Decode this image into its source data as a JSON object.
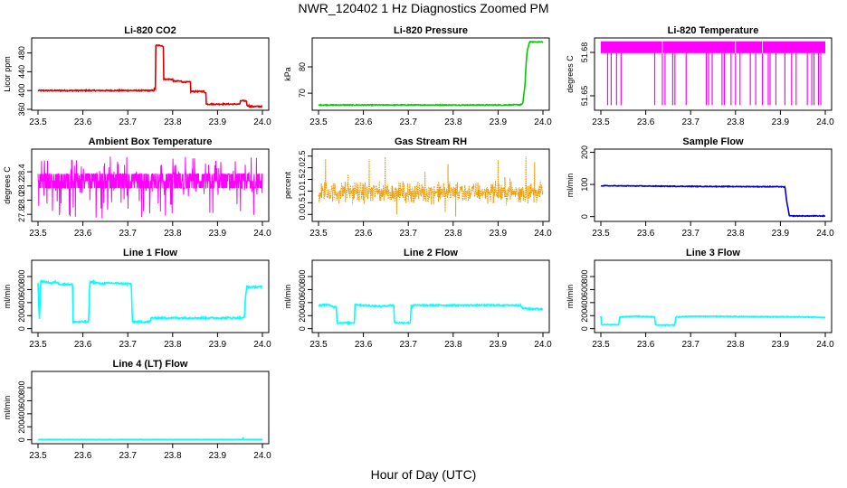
{
  "figure": {
    "title": "NWR_120402  1 Hz Diagnostics Zoomed PM",
    "xlabel": "Hour of Day (UTC)"
  },
  "chart_data": [
    {
      "type": "line",
      "title": "Li-820 CO2",
      "ylabel": "Licor ppm",
      "color": "#dd0000",
      "xlim": [
        23.5,
        24.0
      ],
      "ylim": [
        358,
        512
      ],
      "yticks": [
        "360",
        "400",
        "440",
        "480"
      ],
      "ytick_values": [
        360,
        400,
        440,
        480
      ],
      "xticks": [
        "23.5",
        "23.6",
        "23.7",
        "23.8",
        "23.9",
        "24.0"
      ],
      "x": [
        23.5,
        23.759,
        23.759,
        23.762,
        23.762,
        23.777,
        23.777,
        23.78,
        23.78,
        23.8,
        23.8,
        23.82,
        23.82,
        23.84,
        23.84,
        23.87,
        23.87,
        23.874,
        23.874,
        23.95,
        23.95,
        23.965,
        23.965,
        23.97,
        23.97,
        24.0
      ],
      "y": [
        400,
        400,
        404,
        404,
        496,
        496,
        494,
        494,
        424,
        424,
        420,
        420,
        418,
        418,
        398,
        398,
        396,
        396,
        371,
        371,
        378,
        378,
        368,
        368,
        366,
        366
      ],
      "noise": 1.2
    },
    {
      "type": "line",
      "title": "Li-820 Pressure",
      "ylabel": "kPa",
      "color": "#00cc00",
      "xlim": [
        23.5,
        24.0
      ],
      "ylim": [
        63.5,
        91
      ],
      "yticks": [
        "70",
        "80"
      ],
      "ytick_values": [
        70,
        80
      ],
      "xticks": [
        "23.5",
        "23.6",
        "23.7",
        "23.8",
        "23.9",
        "24.0"
      ],
      "x": [
        23.5,
        23.91,
        23.95,
        23.955,
        23.96,
        23.962,
        23.965,
        23.97,
        24.0
      ],
      "y": [
        65.5,
        65.5,
        65.6,
        66.0,
        73,
        80,
        86,
        89.5,
        89.5
      ],
      "noise": 0.15
    },
    {
      "type": "line",
      "title": "Li-820 Temperature",
      "ylabel": "degrees C",
      "color": "#ff00ff",
      "xlim": [
        23.5,
        24.0
      ],
      "ylim": [
        51.64,
        51.69
      ],
      "yticks": [
        "51.65",
        "51.68"
      ],
      "ytick_values": [
        51.65,
        51.68
      ],
      "xticks": [
        "23.5",
        "23.6",
        "23.7",
        "23.8",
        "23.9",
        "24.0"
      ],
      "top": 51.6877,
      "mid": 51.6795,
      "low": 51.6435,
      "drop_x": [
        23.515,
        23.523,
        23.535,
        23.545,
        23.62,
        23.637,
        23.643,
        23.66,
        23.665,
        23.69,
        23.735,
        23.74,
        23.748,
        23.77,
        23.775,
        23.79,
        23.8,
        23.81,
        23.833,
        23.845,
        23.86,
        23.873,
        23.877,
        23.89,
        23.91,
        23.925,
        23.935,
        23.96,
        23.97,
        23.975,
        23.985,
        23.99
      ]
    },
    {
      "type": "line",
      "title": "Ambient Box Temperature",
      "ylabel": "degrees C",
      "color": "#ff00ff",
      "xlim": [
        23.5,
        24.0
      ],
      "ylim": [
        27.7,
        28.72
      ],
      "yticks": [
        "27.8",
        "28.0",
        "28.2",
        "28.4"
      ],
      "ytick_values": [
        27.8,
        28.0,
        28.2,
        28.4
      ],
      "xticks": [
        "23.5",
        "23.6",
        "23.7",
        "23.8",
        "23.9",
        "24.0"
      ],
      "levels": [
        28.17,
        28.27,
        28.37
      ],
      "range": [
        27.74,
        28.62
      ]
    },
    {
      "type": "scatter",
      "title": "Gas Stream RH",
      "ylabel": "percent",
      "color": "#ee9900",
      "xlim": [
        23.5,
        24.0
      ],
      "ylim": [
        -0.3,
        2.8
      ],
      "yticks": [
        "0.0",
        "0.5",
        "1.0",
        "1.5",
        "2.0",
        "2.5"
      ],
      "ytick_values": [
        0,
        0.5,
        1.0,
        1.5,
        2.0,
        2.5
      ],
      "xticks": [
        "23.5",
        "23.6",
        "23.7",
        "23.8",
        "23.9",
        "24.0"
      ],
      "center": 0.95,
      "spread": 0.35,
      "range": [
        -0.1,
        2.6
      ]
    },
    {
      "type": "line",
      "title": "Sample Flow",
      "ylabel": "ml/min",
      "color": "#0000cc",
      "xlim": [
        23.5,
        24.0
      ],
      "ylim": [
        -15,
        210
      ],
      "yticks": [
        "0",
        "100",
        "200"
      ],
      "ytick_values": [
        0,
        100,
        200
      ],
      "xticks": [
        "23.5",
        "23.6",
        "23.7",
        "23.8",
        "23.9",
        "24.0"
      ],
      "x": [
        23.5,
        23.7,
        23.9,
        23.91,
        23.915,
        23.92,
        24.0
      ],
      "y": [
        96,
        94,
        93,
        92,
        40,
        2,
        2
      ],
      "noise": 1.0
    },
    {
      "type": "line",
      "title": "Line 1 Flow",
      "ylabel": "ml/min",
      "color": "#00ffff",
      "xlim": [
        23.5,
        24.0
      ],
      "ylim": [
        -60,
        1050
      ],
      "yticks": [
        "0",
        "200",
        "400",
        "600",
        "800"
      ],
      "ytick_values": [
        0,
        200,
        400,
        600,
        800
      ],
      "xticks": [
        "23.5",
        "23.6",
        "23.7",
        "23.8",
        "23.9",
        "24.0"
      ],
      "x": [
        23.5,
        23.503,
        23.506,
        23.53,
        23.54,
        23.55,
        23.575,
        23.577,
        23.578,
        23.61,
        23.613,
        23.615,
        23.62,
        23.64,
        23.66,
        23.705,
        23.708,
        23.71,
        23.75,
        23.752,
        23.96,
        23.962,
        23.965,
        24.0
      ],
      "y": [
        700,
        120,
        730,
        700,
        720,
        680,
        680,
        690,
        105,
        105,
        100,
        700,
        720,
        690,
        700,
        690,
        700,
        105,
        105,
        165,
        165,
        470,
        640,
        640
      ],
      "noise": 12
    },
    {
      "type": "line",
      "title": "Line 2 Flow",
      "ylabel": "ml/min",
      "color": "#00ffff",
      "xlim": [
        23.5,
        24.0
      ],
      "ylim": [
        -60,
        1050
      ],
      "yticks": [
        "0",
        "200",
        "400",
        "600",
        "800"
      ],
      "ytick_values": [
        0,
        200,
        400,
        600,
        800
      ],
      "xticks": [
        "23.5",
        "23.6",
        "23.7",
        "23.8",
        "23.9",
        "24.0"
      ],
      "x": [
        23.5,
        23.52,
        23.535,
        23.54,
        23.541,
        23.58,
        23.581,
        23.6,
        23.62,
        23.64,
        23.66,
        23.668,
        23.669,
        23.705,
        23.706,
        23.708,
        23.71,
        23.95,
        23.955,
        24.0
      ],
      "y": [
        360,
        370,
        330,
        350,
        90,
        90,
        370,
        360,
        350,
        340,
        360,
        360,
        90,
        90,
        380,
        320,
        360,
        360,
        310,
        300
      ],
      "noise": 10
    },
    {
      "type": "line",
      "title": "Line 3 Flow",
      "ylabel": "ml/min",
      "color": "#00ffff",
      "xlim": [
        23.5,
        24.0
      ],
      "ylim": [
        -60,
        1050
      ],
      "yticks": [
        "0",
        "200",
        "400",
        "600",
        "800"
      ],
      "ytick_values": [
        0,
        200,
        400,
        600,
        800
      ],
      "xticks": [
        "23.5",
        "23.6",
        "23.7",
        "23.8",
        "23.9",
        "24.0"
      ],
      "x": [
        23.5,
        23.502,
        23.504,
        23.54,
        23.542,
        23.58,
        23.62,
        23.622,
        23.665,
        23.667,
        23.7,
        23.95,
        24.0
      ],
      "y": [
        190,
        70,
        60,
        60,
        180,
        190,
        180,
        55,
        55,
        180,
        190,
        180,
        170
      ],
      "noise": 6
    },
    {
      "type": "line",
      "title": "Line 4 (LT) Flow",
      "ylabel": "ml/min",
      "color": "#00ffff",
      "xlim": [
        23.5,
        24.0
      ],
      "ylim": [
        -60,
        1050
      ],
      "yticks": [
        "0",
        "200",
        "400",
        "600",
        "800"
      ],
      "ytick_values": [
        0,
        200,
        400,
        600,
        800
      ],
      "xticks": [
        "23.5",
        "23.6",
        "23.7",
        "23.8",
        "23.9",
        "24.0"
      ],
      "x": [
        23.5,
        23.955,
        23.956,
        23.957,
        23.958,
        23.96,
        24.0
      ],
      "y": [
        5,
        5,
        20,
        40,
        5,
        5,
        5
      ],
      "noise": 1.5
    }
  ]
}
